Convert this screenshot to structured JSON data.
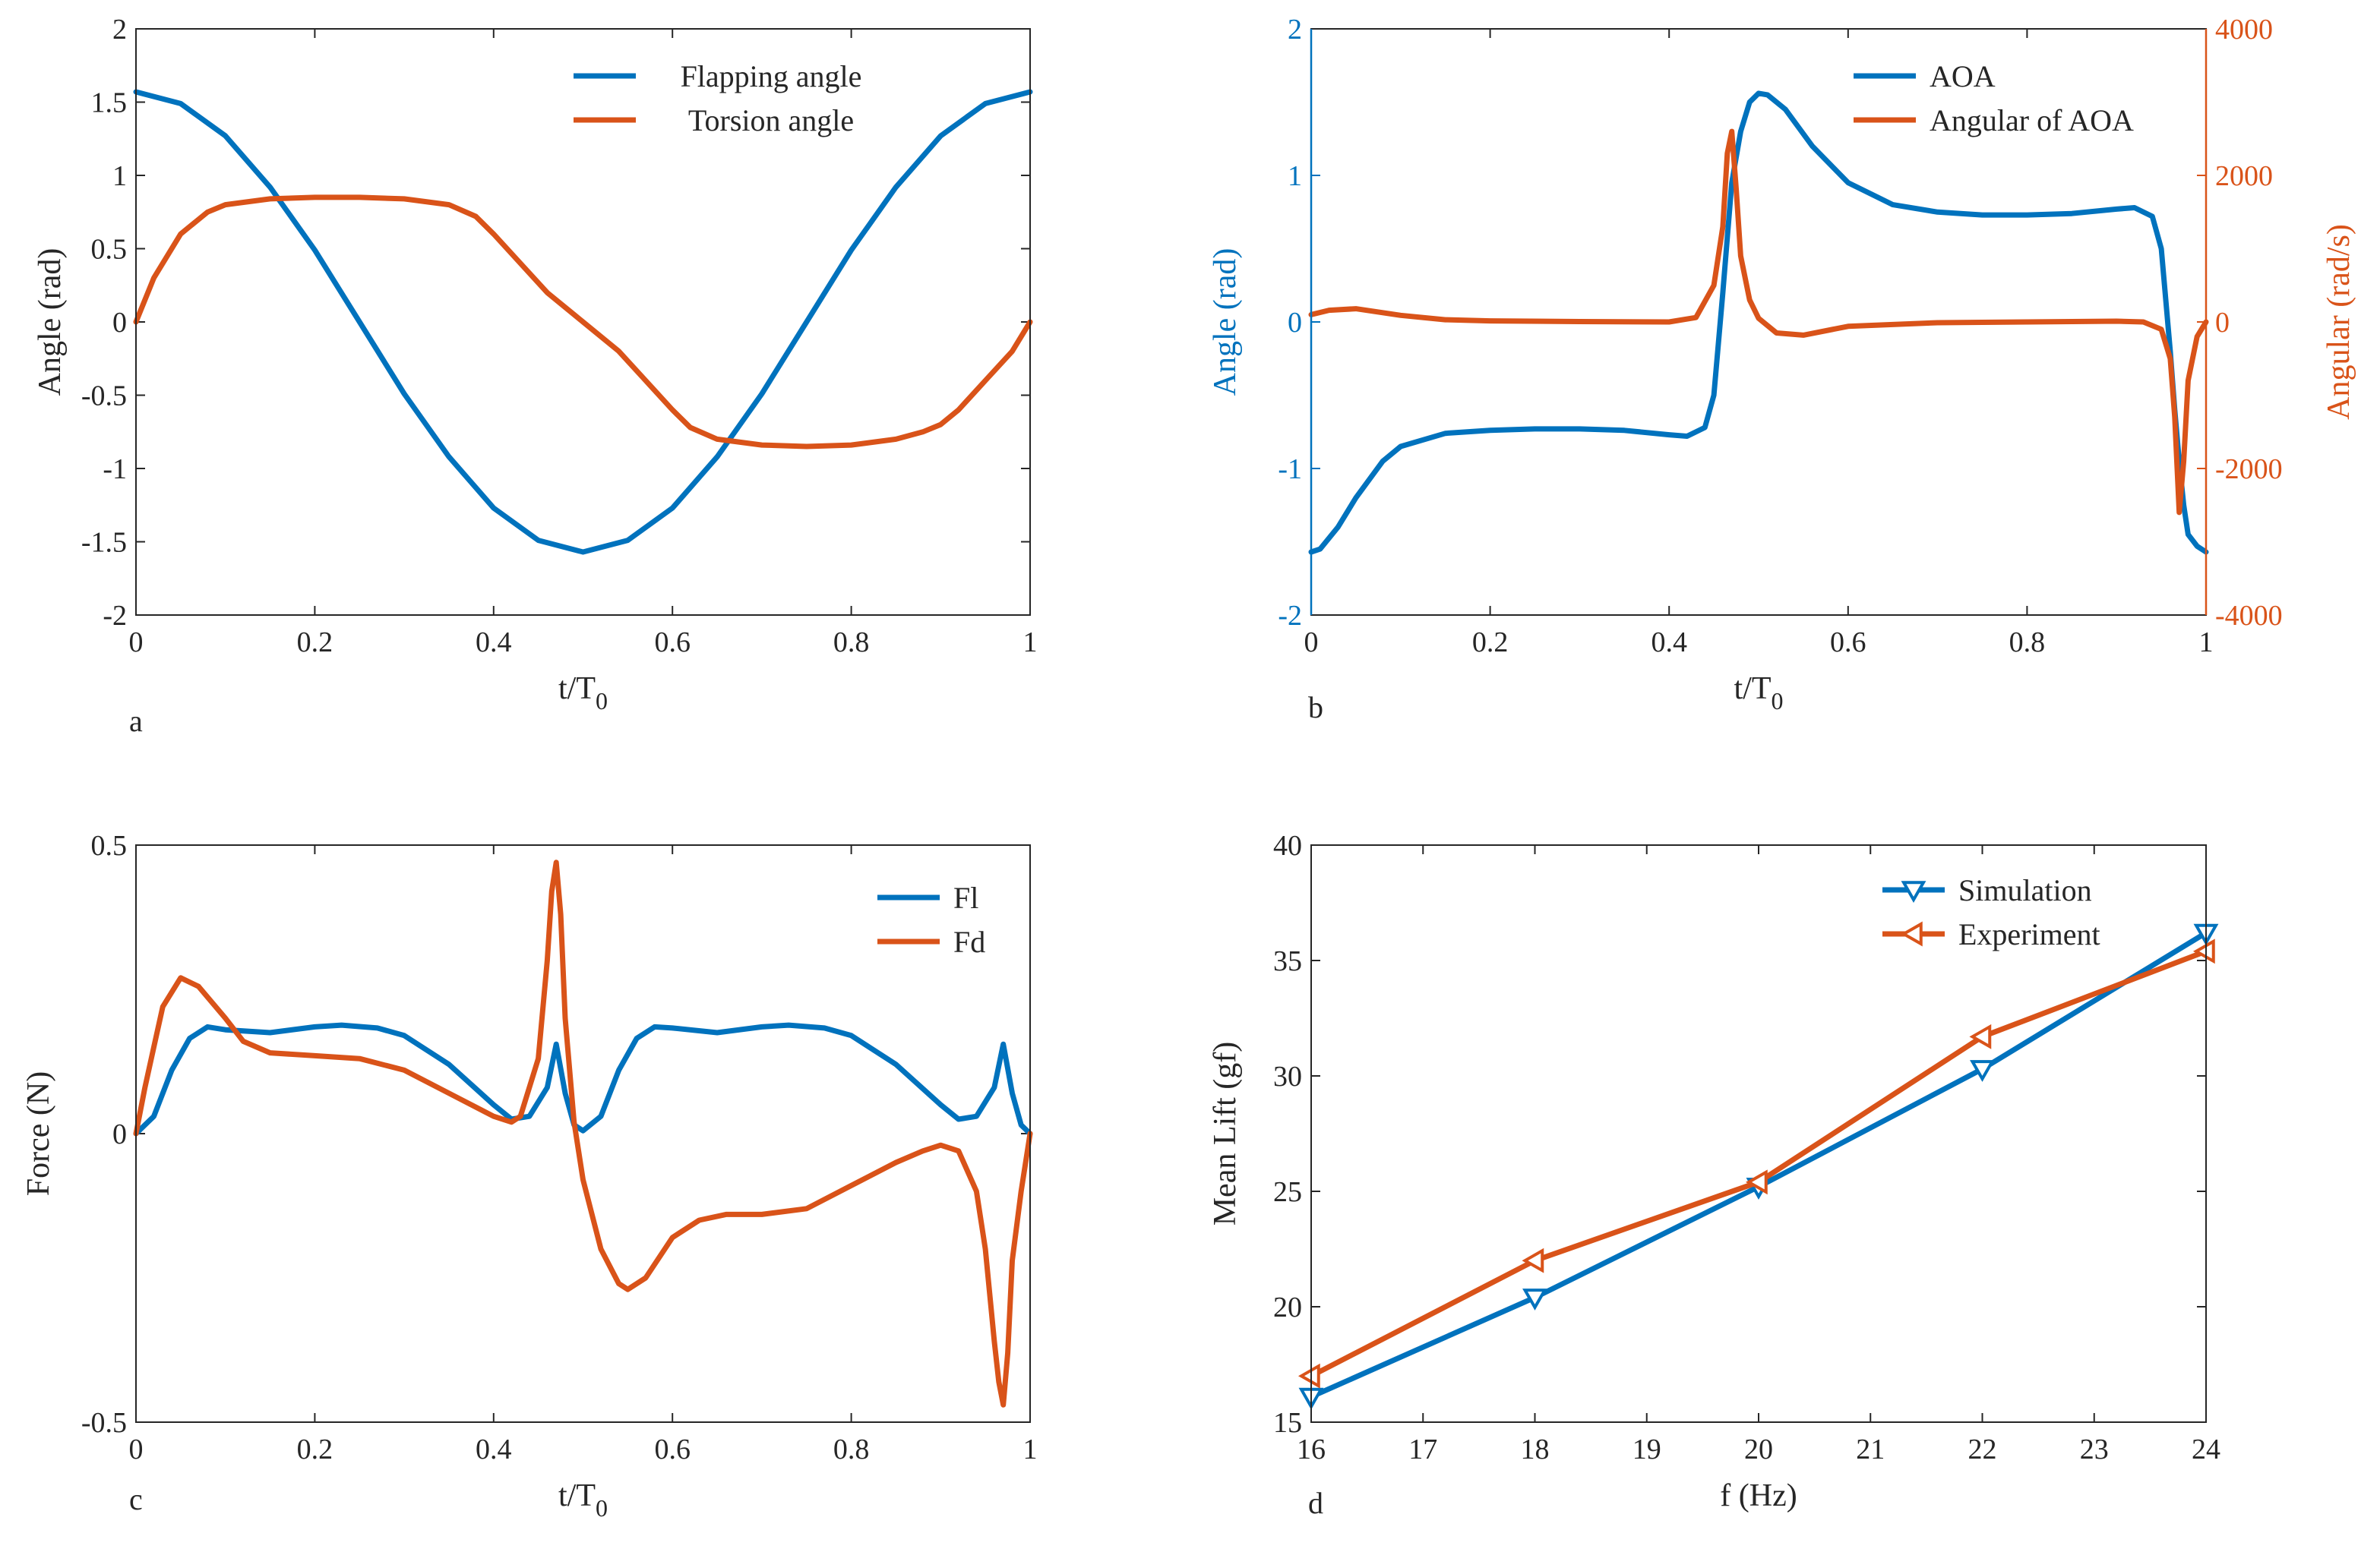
{
  "colors": {
    "blue": "#0072BD",
    "orange": "#D95319",
    "axis": "#262626"
  },
  "chart_data": [
    {
      "id": "a",
      "type": "line",
      "panel_label": "a",
      "xlabel": "t/T",
      "xlabel_sub": "0",
      "ylabel": "Angle (rad)",
      "xlim": [
        0,
        1
      ],
      "ylim": [
        -2,
        2
      ],
      "xticks": [
        "0",
        "0.2",
        "0.4",
        "0.6",
        "0.8",
        "1"
      ],
      "yticks": [
        "-2",
        "-1.5",
        "-1",
        "-0.5",
        "0",
        "0.5",
        "1",
        "1.5",
        "2"
      ],
      "legend_position": "top-right",
      "series": [
        {
          "name": "Flapping angle",
          "color": "#0072BD",
          "x": [
            0,
            0.05,
            0.1,
            0.15,
            0.2,
            0.25,
            0.3,
            0.35,
            0.4,
            0.45,
            0.5,
            0.55,
            0.6,
            0.65,
            0.7,
            0.75,
            0.8,
            0.85,
            0.9,
            0.95,
            1
          ],
          "y": [
            1.57,
            1.49,
            1.27,
            0.92,
            0.49,
            0.0,
            -0.49,
            -0.92,
            -1.27,
            -1.49,
            -1.57,
            -1.49,
            -1.27,
            -0.92,
            -0.49,
            0.0,
            0.49,
            0.92,
            1.27,
            1.49,
            1.57
          ]
        },
        {
          "name": "Torsion angle",
          "color": "#D95319",
          "x": [
            0,
            0.02,
            0.05,
            0.08,
            0.1,
            0.15,
            0.2,
            0.25,
            0.3,
            0.35,
            0.38,
            0.4,
            0.43,
            0.46,
            0.5,
            0.54,
            0.57,
            0.6,
            0.62,
            0.65,
            0.7,
            0.75,
            0.8,
            0.85,
            0.88,
            0.9,
            0.92,
            0.95,
            0.98,
            1
          ],
          "y": [
            0,
            0.3,
            0.6,
            0.75,
            0.8,
            0.84,
            0.85,
            0.85,
            0.84,
            0.8,
            0.72,
            0.6,
            0.4,
            0.2,
            0,
            -0.2,
            -0.4,
            -0.6,
            -0.72,
            -0.8,
            -0.84,
            -0.85,
            -0.84,
            -0.8,
            -0.75,
            -0.7,
            -0.6,
            -0.4,
            -0.2,
            0
          ]
        }
      ]
    },
    {
      "id": "b",
      "type": "line",
      "panel_label": "b",
      "xlabel": "t/T",
      "xlabel_sub": "0",
      "ylabel": "Angle (rad)",
      "ylabel_right": "Angular (rad/s)",
      "xlim": [
        0,
        1
      ],
      "ylim": [
        -2,
        2
      ],
      "ylim_right": [
        -4000,
        4000
      ],
      "xticks": [
        "0",
        "0.2",
        "0.4",
        "0.6",
        "0.8",
        "1"
      ],
      "yticks": [
        "-2",
        "-1",
        "0",
        "1",
        "2"
      ],
      "yticks_right": [
        "-4000",
        "-2000",
        "0",
        "2000",
        "4000"
      ],
      "legend_position": "top-right",
      "series": [
        {
          "name": "AOA",
          "color": "#0072BD",
          "axis": "left",
          "x": [
            0,
            0.01,
            0.03,
            0.05,
            0.08,
            0.1,
            0.15,
            0.2,
            0.25,
            0.3,
            0.35,
            0.4,
            0.42,
            0.44,
            0.45,
            0.46,
            0.47,
            0.48,
            0.49,
            0.5,
            0.51,
            0.53,
            0.56,
            0.6,
            0.65,
            0.7,
            0.75,
            0.8,
            0.85,
            0.9,
            0.92,
            0.94,
            0.95,
            0.96,
            0.965,
            0.97,
            0.975,
            0.98,
            0.99,
            1
          ],
          "y": [
            -1.57,
            -1.55,
            -1.4,
            -1.2,
            -0.95,
            -0.85,
            -0.76,
            -0.74,
            -0.73,
            -0.73,
            -0.74,
            -0.77,
            -0.78,
            -0.72,
            -0.5,
            0.2,
            0.95,
            1.3,
            1.5,
            1.56,
            1.55,
            1.45,
            1.2,
            0.95,
            0.8,
            0.75,
            0.73,
            0.73,
            0.74,
            0.77,
            0.78,
            0.72,
            0.5,
            -0.2,
            -0.6,
            -0.95,
            -1.25,
            -1.45,
            -1.53,
            -1.57
          ]
        },
        {
          "name": "Angular of AOA",
          "color": "#D95319",
          "axis": "right",
          "x": [
            0,
            0.02,
            0.05,
            0.1,
            0.15,
            0.2,
            0.3,
            0.4,
            0.43,
            0.45,
            0.46,
            0.465,
            0.47,
            0.475,
            0.48,
            0.49,
            0.5,
            0.52,
            0.55,
            0.6,
            0.7,
            0.8,
            0.9,
            0.93,
            0.95,
            0.96,
            0.965,
            0.97,
            0.975,
            0.98,
            0.99,
            1
          ],
          "y": [
            100,
            160,
            180,
            90,
            30,
            15,
            5,
            0,
            60,
            500,
            1300,
            2300,
            2600,
            1800,
            900,
            300,
            50,
            -150,
            -180,
            -60,
            -10,
            0,
            10,
            0,
            -100,
            -500,
            -1300,
            -2600,
            -1900,
            -800,
            -200,
            0
          ]
        }
      ]
    },
    {
      "id": "c",
      "type": "line",
      "panel_label": "c",
      "xlabel": "t/T",
      "xlabel_sub": "0",
      "ylabel": "Force (N)",
      "xlim": [
        0,
        1
      ],
      "ylim": [
        -0.5,
        0.5
      ],
      "xticks": [
        "0",
        "0.2",
        "0.4",
        "0.6",
        "0.8",
        "1"
      ],
      "yticks": [
        "-0.5",
        "0",
        "0.5"
      ],
      "legend_position": "top-right",
      "series": [
        {
          "name": "Fl",
          "color": "#0072BD",
          "x": [
            0,
            0.02,
            0.04,
            0.06,
            0.08,
            0.1,
            0.15,
            0.2,
            0.23,
            0.27,
            0.3,
            0.35,
            0.4,
            0.42,
            0.44,
            0.46,
            0.47,
            0.48,
            0.49,
            0.5,
            0.52,
            0.54,
            0.56,
            0.58,
            0.6,
            0.65,
            0.7,
            0.73,
            0.77,
            0.8,
            0.85,
            0.9,
            0.92,
            0.94,
            0.96,
            0.97,
            0.98,
            0.99,
            1
          ],
          "y": [
            0,
            0.03,
            0.11,
            0.165,
            0.185,
            0.18,
            0.175,
            0.185,
            0.188,
            0.183,
            0.17,
            0.12,
            0.05,
            0.025,
            0.03,
            0.08,
            0.155,
            0.07,
            0.015,
            0.005,
            0.03,
            0.11,
            0.165,
            0.185,
            0.183,
            0.175,
            0.185,
            0.188,
            0.183,
            0.17,
            0.12,
            0.05,
            0.025,
            0.03,
            0.08,
            0.155,
            0.07,
            0.015,
            0
          ]
        },
        {
          "name": "Fd",
          "color": "#D95319",
          "x": [
            0,
            0.01,
            0.02,
            0.03,
            0.05,
            0.07,
            0.1,
            0.12,
            0.15,
            0.2,
            0.25,
            0.3,
            0.35,
            0.4,
            0.42,
            0.43,
            0.45,
            0.46,
            0.465,
            0.47,
            0.475,
            0.48,
            0.49,
            0.5,
            0.52,
            0.54,
            0.55,
            0.57,
            0.6,
            0.63,
            0.66,
            0.7,
            0.75,
            0.8,
            0.85,
            0.88,
            0.9,
            0.92,
            0.94,
            0.95,
            0.96,
            0.965,
            0.97,
            0.975,
            0.98,
            0.99,
            1
          ],
          "y": [
            0,
            0.08,
            0.15,
            0.22,
            0.27,
            0.255,
            0.2,
            0.16,
            0.14,
            0.135,
            0.13,
            0.11,
            0.07,
            0.03,
            0.02,
            0.03,
            0.13,
            0.3,
            0.42,
            0.47,
            0.38,
            0.2,
            0.02,
            -0.08,
            -0.2,
            -0.26,
            -0.27,
            -0.25,
            -0.18,
            -0.15,
            -0.14,
            -0.14,
            -0.13,
            -0.09,
            -0.05,
            -0.03,
            -0.02,
            -0.03,
            -0.1,
            -0.2,
            -0.36,
            -0.43,
            -0.47,
            -0.38,
            -0.22,
            -0.1,
            0
          ]
        }
      ]
    },
    {
      "id": "d",
      "type": "line",
      "panel_label": "d",
      "xlabel": "f (Hz)",
      "ylabel": "Mean Lift (gf)",
      "xlim": [
        16,
        24
      ],
      "ylim": [
        15,
        40
      ],
      "xticks": [
        "16",
        "17",
        "18",
        "19",
        "20",
        "21",
        "22",
        "23",
        "24"
      ],
      "yticks": [
        "15",
        "20",
        "25",
        "30",
        "35",
        "40"
      ],
      "legend_position": "top-right",
      "series": [
        {
          "name": "Simulation",
          "color": "#0072BD",
          "marker": "triangle-down",
          "x": [
            16,
            18,
            20,
            22,
            24
          ],
          "y": [
            16.1,
            20.4,
            25.2,
            30.3,
            36.2
          ]
        },
        {
          "name": "Experiment",
          "color": "#D95319",
          "marker": "triangle-left",
          "x": [
            16,
            18,
            20,
            22,
            24
          ],
          "y": [
            17.0,
            22.0,
            25.4,
            31.7,
            35.4
          ]
        }
      ]
    }
  ]
}
